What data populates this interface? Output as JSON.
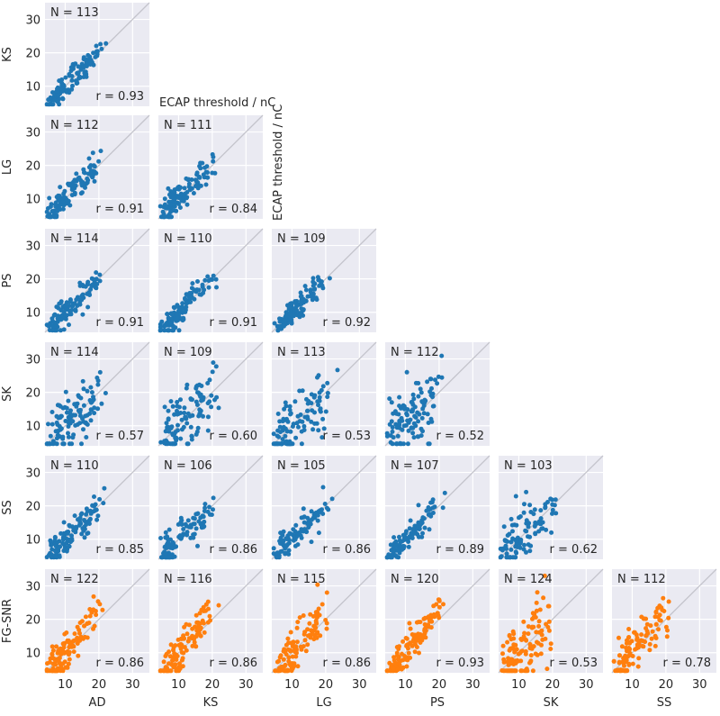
{
  "chart_data": {
    "type": "scatter",
    "title": "",
    "axis_label_note": "ECAP threshold / nC",
    "xlim": [
      4,
      35
    ],
    "ylim": [
      4,
      35
    ],
    "ticks": [
      10,
      20,
      30
    ],
    "tick_labels": [
      "10",
      "20",
      "30"
    ],
    "grid": true,
    "diagonal_line": "identity y = x",
    "row_labels": [
      "KS",
      "LG",
      "PS",
      "SK",
      "SS",
      "FG-SNR"
    ],
    "col_labels": [
      "AD",
      "KS",
      "LG",
      "PS",
      "SK",
      "SS"
    ],
    "series_colors": {
      "blue": "#1f77b4",
      "orange": "#ff7f0e"
    },
    "panels": [
      {
        "row": 0,
        "col": 0,
        "y_method": "KS",
        "x_method": "AD",
        "n_label": "N = 113",
        "r_label": "r = 0.93",
        "n": 113,
        "r": 0.93,
        "color": "blue",
        "spread": 1.6,
        "slope": 1.0
      },
      {
        "row": 1,
        "col": 0,
        "y_method": "LG",
        "x_method": "AD",
        "n_label": "N = 112",
        "r_label": "r = 0.91",
        "n": 112,
        "r": 0.91,
        "color": "blue",
        "spread": 1.9,
        "slope": 1.0
      },
      {
        "row": 1,
        "col": 1,
        "y_method": "LG",
        "x_method": "KS",
        "n_label": "N = 111",
        "r_label": "r = 0.84",
        "n": 111,
        "r": 0.84,
        "color": "blue",
        "spread": 2.6,
        "slope": 1.0
      },
      {
        "row": 2,
        "col": 0,
        "y_method": "PS",
        "x_method": "AD",
        "n_label": "N = 114",
        "r_label": "r = 0.91",
        "n": 114,
        "r": 0.91,
        "color": "blue",
        "spread": 1.9,
        "slope": 1.0
      },
      {
        "row": 2,
        "col": 1,
        "y_method": "PS",
        "x_method": "KS",
        "n_label": "N = 110",
        "r_label": "r = 0.91",
        "n": 110,
        "r": 0.91,
        "color": "blue",
        "spread": 1.9,
        "slope": 1.0
      },
      {
        "row": 2,
        "col": 2,
        "y_method": "PS",
        "x_method": "LG",
        "n_label": "N = 109",
        "r_label": "r = 0.92",
        "n": 109,
        "r": 0.92,
        "color": "blue",
        "spread": 1.8,
        "slope": 1.0
      },
      {
        "row": 3,
        "col": 0,
        "y_method": "SK",
        "x_method": "AD",
        "n_label": "N = 114",
        "r_label": "r = 0.57",
        "n": 114,
        "r": 0.57,
        "color": "blue",
        "spread": 4.6,
        "slope": 0.9
      },
      {
        "row": 3,
        "col": 1,
        "y_method": "SK",
        "x_method": "KS",
        "n_label": "N = 109",
        "r_label": "r = 0.60",
        "n": 109,
        "r": 0.6,
        "color": "blue",
        "spread": 4.4,
        "slope": 0.9
      },
      {
        "row": 3,
        "col": 2,
        "y_method": "SK",
        "x_method": "LG",
        "n_label": "N = 113",
        "r_label": "r = 0.53",
        "n": 113,
        "r": 0.53,
        "color": "blue",
        "spread": 4.8,
        "slope": 0.9
      },
      {
        "row": 3,
        "col": 3,
        "y_method": "SK",
        "x_method": "PS",
        "n_label": "N = 112",
        "r_label": "r = 0.52",
        "n": 112,
        "r": 0.52,
        "color": "blue",
        "spread": 4.9,
        "slope": 0.9
      },
      {
        "row": 4,
        "col": 0,
        "y_method": "SS",
        "x_method": "AD",
        "n_label": "N = 110",
        "r_label": "r = 0.85",
        "n": 110,
        "r": 0.85,
        "color": "blue",
        "spread": 2.4,
        "slope": 0.95
      },
      {
        "row": 4,
        "col": 1,
        "y_method": "SS",
        "x_method": "KS",
        "n_label": "N = 106",
        "r_label": "r = 0.86",
        "n": 106,
        "r": 0.86,
        "color": "blue",
        "spread": 2.3,
        "slope": 0.95
      },
      {
        "row": 4,
        "col": 2,
        "y_method": "SS",
        "x_method": "LG",
        "n_label": "N = 105",
        "r_label": "r = 0.86",
        "n": 105,
        "r": 0.86,
        "color": "blue",
        "spread": 2.3,
        "slope": 0.95
      },
      {
        "row": 4,
        "col": 3,
        "y_method": "SS",
        "x_method": "PS",
        "n_label": "N = 107",
        "r_label": "r = 0.89",
        "n": 107,
        "r": 0.89,
        "color": "blue",
        "spread": 2.0,
        "slope": 0.95
      },
      {
        "row": 4,
        "col": 4,
        "y_method": "SS",
        "x_method": "SK",
        "n_label": "N = 103",
        "r_label": "r = 0.62",
        "n": 103,
        "r": 0.62,
        "color": "blue",
        "spread": 3.9,
        "slope": 0.85
      },
      {
        "row": 5,
        "col": 0,
        "y_method": "FG-SNR",
        "x_method": "AD",
        "n_label": "N = 122",
        "r_label": "r = 0.86",
        "n": 122,
        "r": 0.86,
        "color": "orange",
        "spread": 3.0,
        "slope": 1.3
      },
      {
        "row": 5,
        "col": 1,
        "y_method": "FG-SNR",
        "x_method": "KS",
        "n_label": "N = 116",
        "r_label": "r = 0.86",
        "n": 116,
        "r": 0.86,
        "color": "orange",
        "spread": 3.0,
        "slope": 1.3
      },
      {
        "row": 5,
        "col": 2,
        "y_method": "FG-SNR",
        "x_method": "LG",
        "n_label": "N = 115",
        "r_label": "r = 0.86",
        "n": 115,
        "r": 0.86,
        "color": "orange",
        "spread": 3.0,
        "slope": 1.3
      },
      {
        "row": 5,
        "col": 3,
        "y_method": "FG-SNR",
        "x_method": "PS",
        "n_label": "N = 120",
        "r_label": "r = 0.93",
        "n": 120,
        "r": 0.93,
        "color": "orange",
        "spread": 2.2,
        "slope": 1.3
      },
      {
        "row": 5,
        "col": 4,
        "y_method": "FG-SNR",
        "x_method": "SK",
        "n_label": "N = 124",
        "r_label": "r = 0.53",
        "n": 124,
        "r": 0.53,
        "color": "orange",
        "spread": 6.0,
        "slope": 1.0
      },
      {
        "row": 5,
        "col": 5,
        "y_method": "FG-SNR",
        "x_method": "SS",
        "n_label": "N = 112",
        "r_label": "r = 0.78",
        "n": 112,
        "r": 0.78,
        "color": "orange",
        "spread": 3.6,
        "slope": 1.25
      }
    ]
  }
}
